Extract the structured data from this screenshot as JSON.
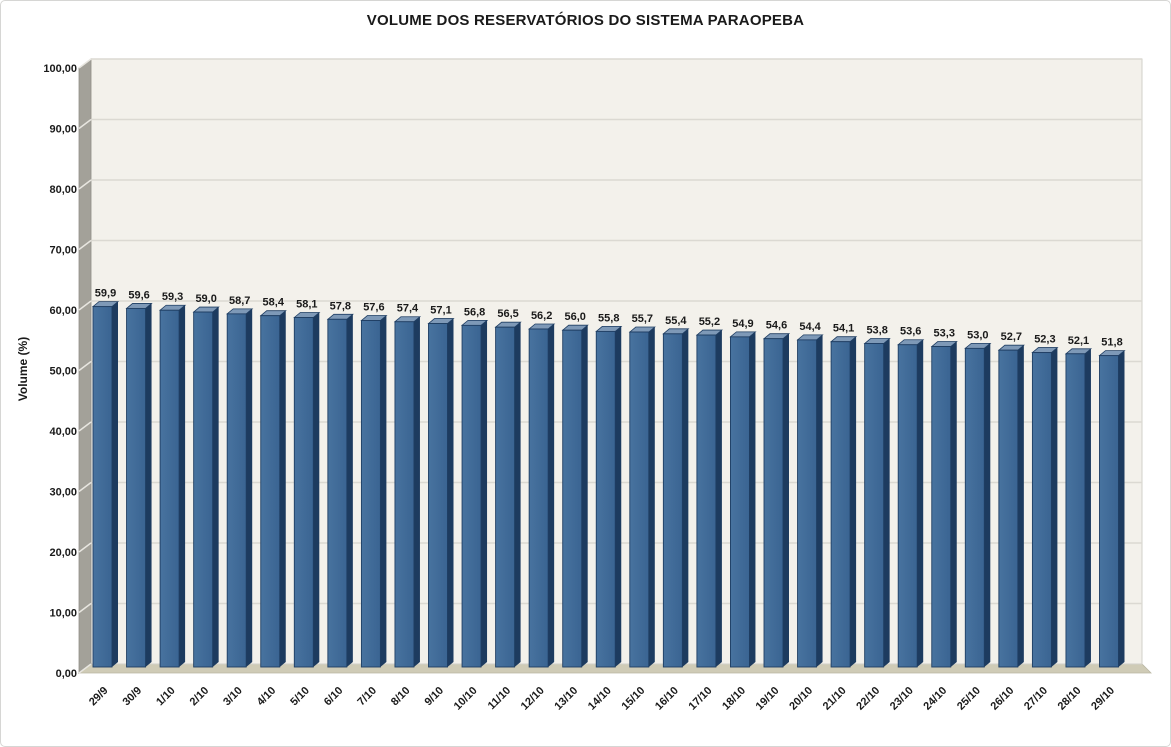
{
  "window": {
    "background": "#ffffff",
    "border_color": "#d6d6d4"
  },
  "chart_data": {
    "type": "bar",
    "style": "3d-column",
    "title": "VOLUME DOS RESERVATÓRIOS DO SISTEMA PARAOPEBA",
    "xlabel": "",
    "ylabel": "Volume (%)",
    "ylim": [
      0,
      100
    ],
    "ytick_step": 10,
    "decimal_separator": ",",
    "grid": true,
    "legend_position": "none",
    "categories": [
      "29/9",
      "30/9",
      "1/10",
      "2/10",
      "3/10",
      "4/10",
      "5/10",
      "6/10",
      "7/10",
      "8/10",
      "9/10",
      "10/10",
      "11/10",
      "12/10",
      "13/10",
      "14/10",
      "15/10",
      "16/10",
      "17/10",
      "18/10",
      "19/10",
      "20/10",
      "21/10",
      "22/10",
      "23/10",
      "24/10",
      "25/10",
      "26/10",
      "27/10",
      "28/10",
      "29/10"
    ],
    "values": [
      59.9,
      59.6,
      59.3,
      59.0,
      58.7,
      58.4,
      58.1,
      57.8,
      57.6,
      57.4,
      57.1,
      56.8,
      56.5,
      56.2,
      56.0,
      55.8,
      55.7,
      55.4,
      55.2,
      54.9,
      54.6,
      54.4,
      54.1,
      53.8,
      53.6,
      53.3,
      53.0,
      52.7,
      52.3,
      52.1,
      51.8
    ]
  },
  "colors": {
    "bar_front": "#3a6492",
    "bar_front_light": "#48739f",
    "bar_side": "#1d3b5f",
    "bar_top": "#7e99b7",
    "bar_outline": "#1f3e63",
    "back_wall": "#f3f1eb",
    "side_wall": "#a3a199",
    "side_wall_notch": "#e8e6e0",
    "floor": "#cfcbb6",
    "gridline": "#dbd9d2",
    "tick_text": "#1a1a1a",
    "label_text": "#1a1a1a"
  }
}
